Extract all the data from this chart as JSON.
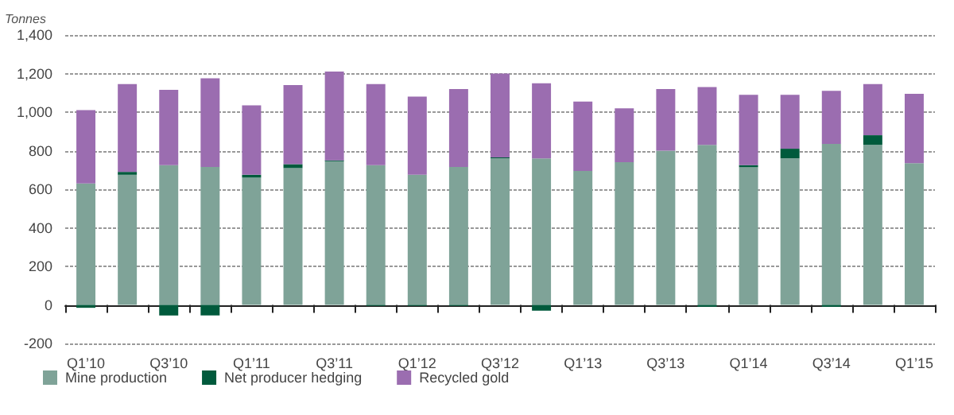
{
  "chart_data": {
    "type": "bar",
    "stacked": true,
    "ylabel": "Tonnes",
    "categories": [
      "Q1’10",
      null,
      "Q3’10",
      null,
      "Q1’11",
      null,
      "Q3’11",
      null,
      "Q1’12",
      null,
      "Q3’12",
      null,
      "Q1’13",
      null,
      "Q3’13",
      null,
      "Q1’14",
      null,
      "Q3’14",
      null,
      "Q1’15"
    ],
    "series": [
      {
        "name": "Mine production",
        "color": "#7fa398",
        "values": [
          630,
          675,
          725,
          715,
          660,
          710,
          745,
          725,
          675,
          715,
          760,
          760,
          695,
          740,
          800,
          830,
          715,
          760,
          835,
          830,
          735
        ]
      },
      {
        "name": "Net producer hedging",
        "color": "#005a3c",
        "values": [
          -15,
          15,
          -55,
          -55,
          15,
          20,
          5,
          -5,
          -5,
          -5,
          5,
          -30,
          null,
          null,
          null,
          -10,
          10,
          50,
          -10,
          50,
          null
        ]
      },
      {
        "name": "Recycled gold",
        "color": "#9b6db0",
        "values": [
          380,
          455,
          390,
          460,
          360,
          410,
          460,
          420,
          405,
          405,
          435,
          390,
          360,
          280,
          320,
          300,
          365,
          280,
          275,
          265,
          360
        ]
      }
    ],
    "ylim": [
      -200,
      1400
    ],
    "yticks": [
      {
        "value": -200,
        "label": "-200"
      },
      0,
      200,
      400,
      600,
      800,
      {
        "value": 1000,
        "label": "1,000"
      },
      {
        "value": 1200,
        "label": "1,200"
      },
      {
        "value": 1400,
        "label": "1,400"
      }
    ],
    "grid": "y",
    "legend": "bottom left"
  }
}
